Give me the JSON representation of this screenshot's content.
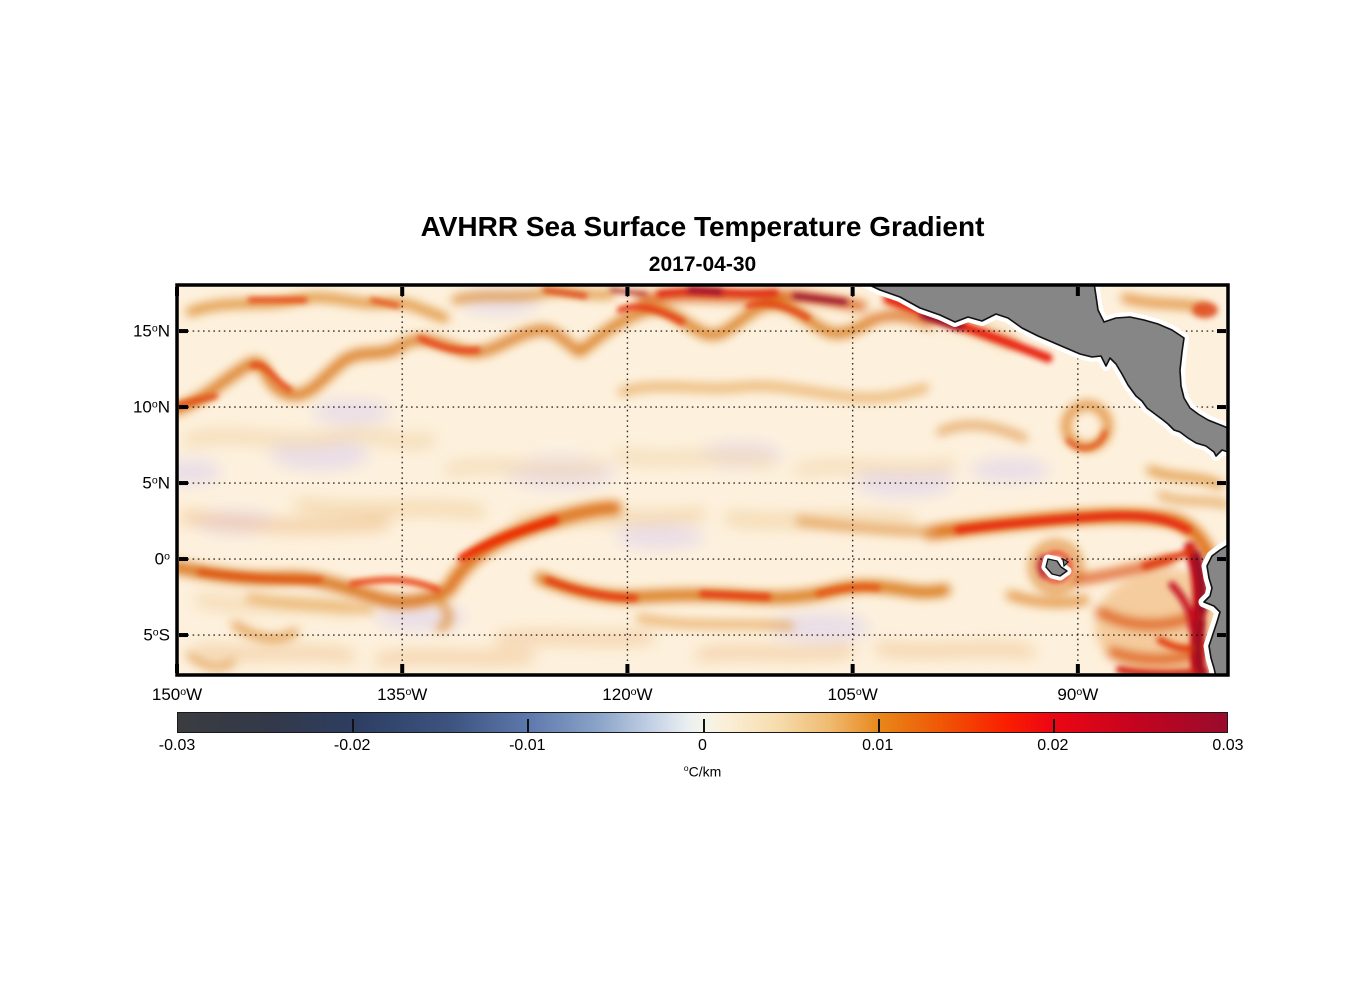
{
  "figure": {
    "title": "AVHRR Sea Surface Temperature Gradient",
    "subtitle": "2017-04-30"
  },
  "chart_data": {
    "type": "heatmap",
    "title": "AVHRR Sea Surface Temperature Gradient",
    "date": "2017-04-30",
    "quantity": "sea surface temperature gradient magnitude",
    "units": "°C/km",
    "lon_range_deg_east": [
      -150,
      -80
    ],
    "lat_range_deg_north": [
      -7.7,
      18.0
    ],
    "grid": "dotted black graticule at labeled ticks",
    "x_axis": {
      "ticks": [
        {
          "lon": -150,
          "label": "150°W"
        },
        {
          "lon": -135,
          "label": "135°W"
        },
        {
          "lon": -120,
          "label": "120°W"
        },
        {
          "lon": -105,
          "label": "105°W"
        },
        {
          "lon": -90,
          "label": "90°W"
        }
      ]
    },
    "y_axis": {
      "ticks": [
        {
          "lat": 15,
          "label": "15°N"
        },
        {
          "lat": 10,
          "label": "10°N"
        },
        {
          "lat": 5,
          "label": "5°N"
        },
        {
          "lat": 0,
          "label": "0°"
        },
        {
          "lat": -5,
          "label": "5°S"
        }
      ]
    },
    "colorbar": {
      "orientation": "horizontal",
      "min": -0.03,
      "max": 0.03,
      "tick_values": [
        -0.03,
        -0.02,
        -0.01,
        0,
        0.01,
        0.02,
        0.03
      ],
      "tick_labels": [
        "-0.03",
        "-0.02",
        "-0.01",
        "0",
        "0.01",
        "0.02",
        "0.03"
      ],
      "inner_tick_values": [
        -0.02,
        -0.01,
        0,
        0.01,
        0.02
      ],
      "unit": "°C/km",
      "gradient_stops": [
        {
          "pos": 0.0,
          "color": "#3a3c40"
        },
        {
          "pos": 0.09,
          "color": "#33394a"
        },
        {
          "pos": 0.17,
          "color": "#2d3e62"
        },
        {
          "pos": 0.26,
          "color": "#3d5480"
        },
        {
          "pos": 0.33,
          "color": "#5b76aa"
        },
        {
          "pos": 0.4,
          "color": "#8aa3c8"
        },
        {
          "pos": 0.45,
          "color": "#c2cfe4"
        },
        {
          "pos": 0.485,
          "color": "#e9eef0"
        },
        {
          "pos": 0.5,
          "color": "#f4f4ea"
        },
        {
          "pos": 0.52,
          "color": "#faf0da"
        },
        {
          "pos": 0.57,
          "color": "#f6ddae"
        },
        {
          "pos": 0.62,
          "color": "#f0bb72"
        },
        {
          "pos": 0.67,
          "color": "#e88618"
        },
        {
          "pos": 0.73,
          "color": "#f05505"
        },
        {
          "pos": 0.79,
          "color": "#fa1e00"
        },
        {
          "pos": 0.83,
          "color": "#ee0712"
        },
        {
          "pos": 0.91,
          "color": "#c5041f"
        },
        {
          "pos": 1.0,
          "color": "#990b2c"
        }
      ]
    },
    "land_color": "#868686",
    "coastline_color": "#111111",
    "no_data_coastal_band_color": "#ffffff",
    "ocean_background": "#fdf1dd",
    "features": [
      "Wavy high-gradient frontal bands between 10°N and 15°N across the basin",
      "Dark red front cores near the top edge between 120°W and 105°W",
      "Strong equatorial front filaments between 3°N and 2°S across the basin",
      "Intense red front band near 1-2°N from 102°W to the American coast",
      "Tehuantepec coastal front (red/crimson) along the Mexican Pacific coast",
      "Ring-like eddy front southwest of Nicaragua near 9.5°N 89°W",
      "Galápagos Islands with surrounding eddy front near 0° 91°W",
      "Very strong coastal upwelling front off Ecuador and Peru along the map edge",
      "Gray land: Mexico, Central America, Galápagos, northwestern South America"
    ]
  }
}
